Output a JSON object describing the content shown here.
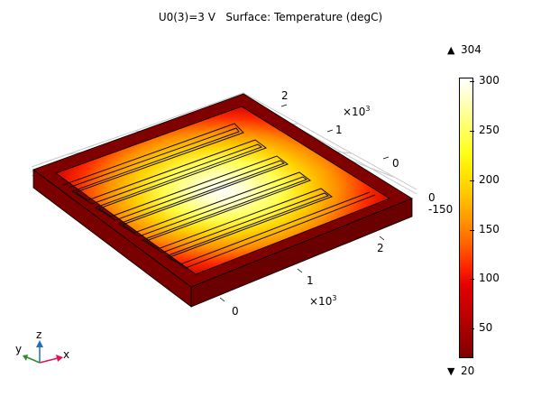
{
  "title": {
    "left": "U0(3)=3 V",
    "right": "Surface: Temperature (degC)"
  },
  "axes": {
    "depth_ticks": [
      "2",
      "1",
      "0"
    ],
    "depth_exponent": {
      "base": "×10",
      "power": "3"
    },
    "horizontal_ticks": [
      "2",
      "1",
      "0"
    ],
    "horizontal_exponent": {
      "base": "×10",
      "power": "3"
    },
    "vertical_ticks": [
      "0",
      "-150"
    ]
  },
  "colorbar": {
    "max_label": "304",
    "min_label": "20",
    "ticks": [
      "300",
      "250",
      "200",
      "150",
      "100",
      "50"
    ],
    "tick_values": [
      300,
      250,
      200,
      150,
      100,
      50
    ],
    "range": [
      20,
      304
    ],
    "colormap": "heat",
    "max_marker_icon": "triangle-up-icon",
    "min_marker_icon": "triangle-down-icon"
  },
  "triad": {
    "x": "x",
    "y": "y",
    "z": "z",
    "colors": {
      "x": "#e0115f",
      "y": "#2e8b2e",
      "z": "#1f6fbf"
    }
  },
  "colors": {
    "plate_edge": "#7f0000",
    "plate_side": "#7a0000",
    "hot": "#ffffff",
    "warm": "#ffe600",
    "mid": "#ff6400"
  }
}
